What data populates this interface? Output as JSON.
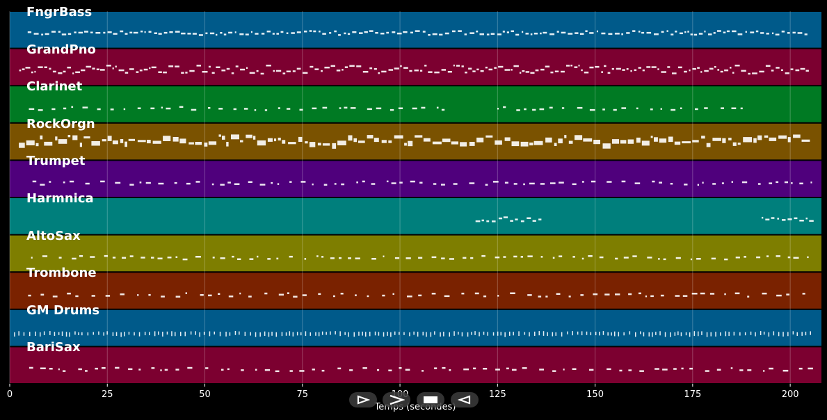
{
  "chart_data": {
    "type": "piano-roll",
    "xlabel": "Temps (secondes)",
    "xlim": [
      0,
      208
    ],
    "xticks": [
      0,
      25,
      50,
      75,
      100,
      125,
      150,
      175,
      200
    ],
    "grid": true,
    "tracks": [
      {
        "name": "FngrBass",
        "color": "#005a8a",
        "segments": [
          [
            4,
            206
          ]
        ],
        "density": 0.55,
        "style": "line"
      },
      {
        "name": "GrandPno",
        "color": "#7c0030",
        "segments": [
          [
            2,
            206
          ]
        ],
        "density": 0.9,
        "style": "dense"
      },
      {
        "name": "Clarinet",
        "color": "#007a23",
        "segments": [
          [
            4,
            112
          ],
          [
            124,
            190
          ]
        ],
        "density": 0.4,
        "style": "sparse"
      },
      {
        "name": "RockOrgn",
        "color": "#7a5200",
        "segments": [
          [
            2,
            206
          ]
        ],
        "density": 0.8,
        "style": "blocks"
      },
      {
        "name": "Trumpet",
        "color": "#4f007c",
        "segments": [
          [
            4,
            206
          ]
        ],
        "density": 0.45,
        "style": "sparse"
      },
      {
        "name": "Harmnica",
        "color": "#007f7c",
        "segments": [
          [
            119,
            137
          ],
          [
            192,
            206
          ]
        ],
        "density": 0.6,
        "style": "line"
      },
      {
        "name": "AltoSax",
        "color": "#7e7e00",
        "segments": [
          [
            4,
            206
          ]
        ],
        "density": 0.5,
        "style": "sparse"
      },
      {
        "name": "Trombone",
        "color": "#7a2200",
        "segments": [
          [
            4,
            206
          ]
        ],
        "density": 0.4,
        "style": "sparse"
      },
      {
        "name": "GM Drums",
        "color": "#005a8a",
        "segments": [
          [
            0,
            206
          ]
        ],
        "density": 0.6,
        "style": "ticks"
      },
      {
        "name": "BariSax",
        "color": "#7c0030",
        "segments": [
          [
            4,
            206
          ]
        ],
        "density": 0.4,
        "style": "sparse"
      }
    ]
  },
  "controls": {
    "play_icon": "play-icon",
    "fast_forward_icon": "fast-forward-icon",
    "stop_icon": "stop-icon",
    "rewind_icon": "rewind-icon"
  }
}
